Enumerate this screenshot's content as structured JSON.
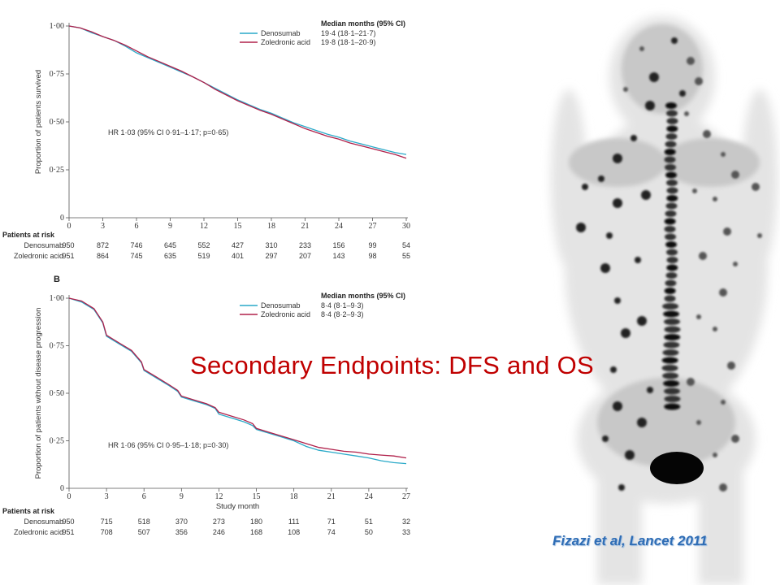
{
  "slide": {
    "title": "Secondary Endpoints: DFS and OS",
    "citation": "Fizazi et al, Lancet 2011"
  },
  "colors": {
    "denosumab": "#29a9c8",
    "zoledronic": "#b0204a",
    "title": "#c00000",
    "citation": "#2f6db5"
  },
  "image": {
    "description_icon": "bone-scan-image"
  },
  "chart_data": [
    {
      "type": "line",
      "panel_label": "",
      "ylabel": "Proportion of patients survived",
      "xlabel": "",
      "ylim": [
        0,
        1
      ],
      "xlim": [
        0,
        30
      ],
      "x_ticks": [
        0,
        3,
        6,
        9,
        12,
        15,
        18,
        21,
        24,
        27,
        30
      ],
      "y_ticks": [
        "0",
        "0·25",
        "0·50",
        "0·75",
        "1·00"
      ],
      "legend_header": "Median months (95% CI)",
      "hr_text": "HR 1·03 (95% CI 0·91–1·17; p=0·65)",
      "series": [
        {
          "name": "Denosumab",
          "ci": "19·4 (18·1–21·7)",
          "x": [
            0,
            1,
            2,
            3,
            4,
            5,
            6,
            7,
            8,
            9,
            10,
            11,
            12,
            13,
            14,
            15,
            16,
            17,
            18,
            19,
            20,
            21,
            22,
            23,
            24,
            25,
            26,
            27,
            28,
            29,
            30
          ],
          "y": [
            1.0,
            0.99,
            0.965,
            0.945,
            0.925,
            0.895,
            0.86,
            0.835,
            0.81,
            0.785,
            0.76,
            0.735,
            0.705,
            0.675,
            0.645,
            0.615,
            0.59,
            0.565,
            0.545,
            0.52,
            0.495,
            0.475,
            0.455,
            0.435,
            0.42,
            0.4,
            0.385,
            0.37,
            0.355,
            0.34,
            0.33
          ]
        },
        {
          "name": "Zoledronic acid",
          "ci": "19·8 (18·1–20·9)",
          "x": [
            0,
            1,
            2,
            3,
            4,
            5,
            6,
            7,
            8,
            9,
            10,
            11,
            12,
            13,
            14,
            15,
            16,
            17,
            18,
            19,
            20,
            21,
            22,
            23,
            24,
            25,
            26,
            27,
            28,
            29,
            30
          ],
          "y": [
            1.0,
            0.99,
            0.97,
            0.945,
            0.925,
            0.9,
            0.87,
            0.84,
            0.815,
            0.79,
            0.765,
            0.735,
            0.705,
            0.67,
            0.64,
            0.61,
            0.585,
            0.56,
            0.54,
            0.515,
            0.49,
            0.465,
            0.445,
            0.425,
            0.41,
            0.39,
            0.375,
            0.36,
            0.345,
            0.33,
            0.31
          ]
        }
      ],
      "risk_table": {
        "header": "Patients at risk",
        "rows": [
          {
            "label": "Denosumab",
            "values": [
              "950",
              "872",
              "746",
              "645",
              "552",
              "427",
              "310",
              "233",
              "156",
              "99",
              "54"
            ]
          },
          {
            "label": "Zoledronic acid",
            "values": [
              "951",
              "864",
              "745",
              "635",
              "519",
              "401",
              "297",
              "207",
              "143",
              "98",
              "55"
            ]
          }
        ]
      }
    },
    {
      "type": "line",
      "panel_label": "B",
      "ylabel": "Proportion of patients without disease progression",
      "xlabel": "Study month",
      "ylim": [
        0,
        1
      ],
      "xlim": [
        0,
        27
      ],
      "x_ticks": [
        0,
        3,
        6,
        9,
        12,
        15,
        18,
        21,
        24,
        27
      ],
      "y_ticks": [
        "0",
        "0·25",
        "0·50",
        "0·75",
        "1·00"
      ],
      "legend_header": "Median months (95% CI)",
      "hr_text": "HR 1·06 (95% CI 0·95–1·18; p=0·30)",
      "series": [
        {
          "name": "Denosumab",
          "ci": "8·4 (8·1–9·3)",
          "x": [
            0,
            1,
            2,
            2.7,
            3,
            4,
            5,
            5.8,
            6,
            7,
            8,
            8.7,
            9,
            10,
            11,
            11.7,
            12,
            13,
            14,
            14.7,
            15,
            16,
            17,
            18,
            19,
            20,
            21,
            22,
            23,
            24,
            25,
            26,
            27
          ],
          "y": [
            1.0,
            0.98,
            0.94,
            0.87,
            0.8,
            0.76,
            0.72,
            0.66,
            0.62,
            0.58,
            0.54,
            0.51,
            0.48,
            0.46,
            0.44,
            0.42,
            0.39,
            0.37,
            0.35,
            0.33,
            0.31,
            0.29,
            0.27,
            0.25,
            0.22,
            0.2,
            0.19,
            0.18,
            0.17,
            0.16,
            0.145,
            0.135,
            0.13
          ]
        },
        {
          "name": "Zoledronic acid",
          "ci": "8·4 (8·2–9·3)",
          "x": [
            0,
            1,
            2,
            2.7,
            3,
            4,
            5,
            5.8,
            6,
            7,
            8,
            8.7,
            9,
            10,
            11,
            11.7,
            12,
            13,
            14,
            14.7,
            15,
            16,
            17,
            18,
            19,
            20,
            21,
            22,
            23,
            24,
            25,
            26,
            27
          ],
          "y": [
            1.0,
            0.985,
            0.945,
            0.875,
            0.805,
            0.765,
            0.725,
            0.665,
            0.625,
            0.585,
            0.545,
            0.515,
            0.485,
            0.465,
            0.445,
            0.425,
            0.4,
            0.38,
            0.36,
            0.34,
            0.315,
            0.295,
            0.275,
            0.255,
            0.235,
            0.215,
            0.205,
            0.195,
            0.19,
            0.18,
            0.175,
            0.17,
            0.16
          ]
        }
      ],
      "risk_table": {
        "header": "Patients at risk",
        "rows": [
          {
            "label": "Denosumab",
            "values": [
              "950",
              "715",
              "518",
              "370",
              "273",
              "180",
              "111",
              "71",
              "51",
              "32"
            ]
          },
          {
            "label": "Zoledronic acid",
            "values": [
              "951",
              "708",
              "507",
              "356",
              "246",
              "168",
              "108",
              "74",
              "50",
              "33"
            ]
          }
        ]
      }
    }
  ]
}
